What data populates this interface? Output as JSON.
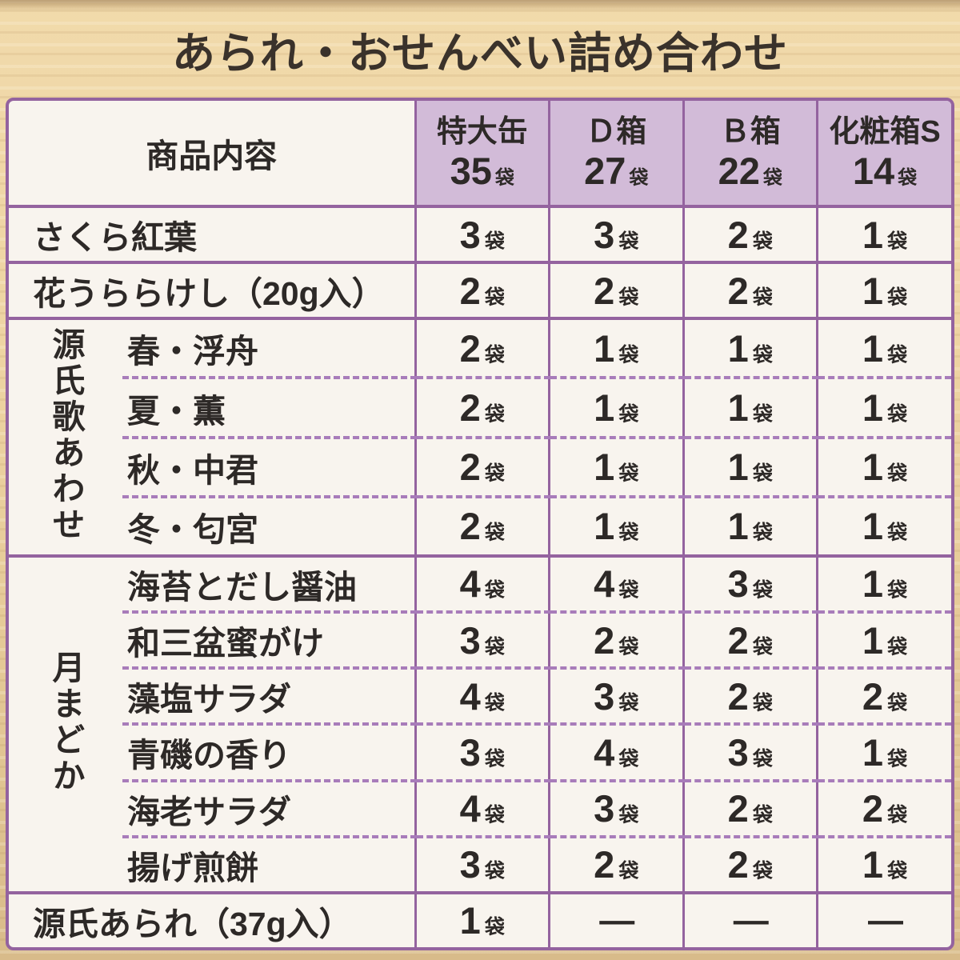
{
  "title": "あられ・おせんべい詰め合わせ",
  "colors": {
    "background_wood": "#eccf9e",
    "table_border_purple": "#94639f",
    "dashed_separator_purple": "#a87cba",
    "header_fill_purple": "#d2bbd8",
    "cell_cream": "#f8f4ee",
    "text_dark": "#2d2927"
  },
  "table": {
    "product_header": "商品内容",
    "unit": "袋",
    "columns": [
      {
        "name": "特大缶",
        "count": "35",
        "unit": "袋"
      },
      {
        "name": "Ｄ箱",
        "count": "27",
        "unit": "袋"
      },
      {
        "name": "Ｂ箱",
        "count": "22",
        "unit": "袋"
      },
      {
        "name": "化粧箱S",
        "count": "14",
        "unit": "袋"
      }
    ],
    "rows": [
      {
        "type": "simple",
        "label": "さくら紅葉",
        "values": [
          "3",
          "3",
          "2",
          "1"
        ]
      },
      {
        "type": "simple",
        "label": "花うららけし（20g入）",
        "values": [
          "2",
          "2",
          "2",
          "1"
        ]
      },
      {
        "type": "group",
        "group": "源氏歌あわせ",
        "items": [
          {
            "label": "春・浮舟",
            "values": [
              "2",
              "1",
              "1",
              "1"
            ]
          },
          {
            "label": "夏・薫",
            "values": [
              "2",
              "1",
              "1",
              "1"
            ]
          },
          {
            "label": "秋・中君",
            "values": [
              "2",
              "1",
              "1",
              "1"
            ]
          },
          {
            "label": "冬・匂宮",
            "values": [
              "2",
              "1",
              "1",
              "1"
            ]
          }
        ]
      },
      {
        "type": "group",
        "group": "月まどか",
        "items": [
          {
            "label": "海苔とだし醤油",
            "values": [
              "4",
              "4",
              "3",
              "1"
            ]
          },
          {
            "label": "和三盆蜜がけ",
            "values": [
              "3",
              "2",
              "2",
              "1"
            ]
          },
          {
            "label": "藻塩サラダ",
            "values": [
              "4",
              "3",
              "2",
              "2"
            ]
          },
          {
            "label": "青磯の香り",
            "values": [
              "3",
              "4",
              "3",
              "1"
            ]
          },
          {
            "label": "海老サラダ",
            "values": [
              "4",
              "3",
              "2",
              "2"
            ]
          },
          {
            "label": "揚げ煎餅",
            "values": [
              "3",
              "2",
              "2",
              "1"
            ]
          }
        ]
      },
      {
        "type": "simple",
        "label": "源氏あられ（37g入）",
        "values": [
          "1",
          "—",
          "—",
          "—"
        ]
      }
    ]
  }
}
